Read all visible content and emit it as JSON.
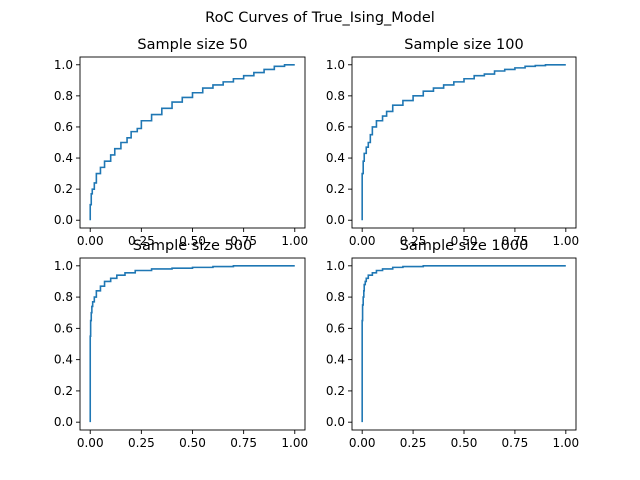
{
  "figure": {
    "suptitle": "RoC Curves of True_Ising_Model"
  },
  "colors": {
    "line": "#1f77b4",
    "axes": "#000000",
    "background": "#ffffff"
  },
  "chart_data": [
    {
      "type": "line",
      "title": "Sample size 50",
      "xlabel": "",
      "ylabel": "",
      "xlim": [
        -0.05,
        1.05
      ],
      "ylim": [
        -0.05,
        1.05
      ],
      "xticks": [
        "0.00",
        "0.25",
        "0.50",
        "0.75",
        "1.00"
      ],
      "xtick_values": [
        0,
        0.25,
        0.5,
        0.75,
        1.0
      ],
      "yticks": [
        "0.0",
        "0.2",
        "0.4",
        "0.6",
        "0.8",
        "1.0"
      ],
      "ytick_values": [
        0,
        0.2,
        0.4,
        0.6,
        0.8,
        1.0
      ],
      "grid": false,
      "series": [
        {
          "x": [
            0,
            0,
            0.005,
            0.01,
            0.02,
            0.03,
            0.05,
            0.07,
            0.1,
            0.12,
            0.15,
            0.18,
            0.2,
            0.23,
            0.25,
            0.3,
            0.35,
            0.4,
            0.45,
            0.5,
            0.55,
            0.6,
            0.65,
            0.7,
            0.75,
            0.8,
            0.85,
            0.9,
            0.95,
            1.0
          ],
          "y": [
            0,
            0.05,
            0.1,
            0.17,
            0.2,
            0.24,
            0.3,
            0.34,
            0.38,
            0.42,
            0.46,
            0.5,
            0.53,
            0.57,
            0.59,
            0.64,
            0.68,
            0.72,
            0.76,
            0.79,
            0.82,
            0.85,
            0.87,
            0.89,
            0.91,
            0.93,
            0.95,
            0.97,
            0.99,
            1.0
          ]
        }
      ]
    },
    {
      "type": "line",
      "title": "Sample size 100",
      "xlabel": "",
      "ylabel": "",
      "xlim": [
        -0.05,
        1.05
      ],
      "ylim": [
        -0.05,
        1.05
      ],
      "xticks": [
        "0.00",
        "0.25",
        "0.50",
        "0.75",
        "1.00"
      ],
      "xtick_values": [
        0,
        0.25,
        0.5,
        0.75,
        1.0
      ],
      "yticks": [
        "0.0",
        "0.2",
        "0.4",
        "0.6",
        "0.8",
        "1.0"
      ],
      "ytick_values": [
        0,
        0.2,
        0.4,
        0.6,
        0.8,
        1.0
      ],
      "grid": false,
      "series": [
        {
          "x": [
            0,
            0,
            0.005,
            0.01,
            0.02,
            0.03,
            0.04,
            0.05,
            0.07,
            0.1,
            0.12,
            0.15,
            0.2,
            0.25,
            0.3,
            0.35,
            0.4,
            0.45,
            0.5,
            0.55,
            0.6,
            0.65,
            0.7,
            0.75,
            0.8,
            0.85,
            0.9,
            0.95,
            1.0
          ],
          "y": [
            0,
            0.2,
            0.3,
            0.38,
            0.43,
            0.47,
            0.5,
            0.55,
            0.6,
            0.64,
            0.67,
            0.7,
            0.74,
            0.77,
            0.8,
            0.83,
            0.85,
            0.87,
            0.89,
            0.91,
            0.93,
            0.94,
            0.96,
            0.97,
            0.98,
            0.99,
            0.995,
            1.0,
            1.0
          ]
        }
      ]
    },
    {
      "type": "line",
      "title": "Sample size 500",
      "xlabel": "",
      "ylabel": "",
      "xlim": [
        -0.05,
        1.05
      ],
      "ylim": [
        -0.05,
        1.05
      ],
      "xticks": [
        "0.00",
        "0.25",
        "0.50",
        "0.75",
        "1.00"
      ],
      "xtick_values": [
        0,
        0.25,
        0.5,
        0.75,
        1.0
      ],
      "yticks": [
        "0.0",
        "0.2",
        "0.4",
        "0.6",
        "0.8",
        "1.0"
      ],
      "ytick_values": [
        0,
        0.2,
        0.4,
        0.6,
        0.8,
        1.0
      ],
      "grid": false,
      "series": [
        {
          "x": [
            0,
            0,
            0.002,
            0.005,
            0.008,
            0.012,
            0.02,
            0.03,
            0.05,
            0.07,
            0.1,
            0.13,
            0.17,
            0.22,
            0.3,
            0.4,
            0.5,
            0.6,
            0.7,
            0.8,
            0.9,
            1.0
          ],
          "y": [
            0,
            0.4,
            0.55,
            0.65,
            0.7,
            0.74,
            0.77,
            0.8,
            0.84,
            0.87,
            0.9,
            0.92,
            0.94,
            0.955,
            0.97,
            0.98,
            0.985,
            0.99,
            0.995,
            1.0,
            1.0,
            1.0
          ]
        }
      ]
    },
    {
      "type": "line",
      "title": "Sample size 1000",
      "xlabel": "",
      "ylabel": "",
      "xlim": [
        -0.05,
        1.05
      ],
      "ylim": [
        -0.05,
        1.05
      ],
      "xticks": [
        "0.00",
        "0.25",
        "0.50",
        "0.75",
        "1.00"
      ],
      "xtick_values": [
        0,
        0.25,
        0.5,
        0.75,
        1.0
      ],
      "yticks": [
        "0.0",
        "0.2",
        "0.4",
        "0.6",
        "0.8",
        "1.0"
      ],
      "ytick_values": [
        0,
        0.2,
        0.4,
        0.6,
        0.8,
        1.0
      ],
      "grid": false,
      "series": [
        {
          "x": [
            0,
            0,
            0.002,
            0.005,
            0.008,
            0.01,
            0.015,
            0.02,
            0.03,
            0.05,
            0.07,
            0.1,
            0.15,
            0.2,
            0.3,
            0.5,
            0.7,
            1.0
          ],
          "y": [
            0,
            0.5,
            0.65,
            0.75,
            0.8,
            0.84,
            0.88,
            0.9,
            0.92,
            0.94,
            0.955,
            0.97,
            0.98,
            0.99,
            0.995,
            1.0,
            1.0,
            1.0
          ]
        }
      ]
    }
  ]
}
